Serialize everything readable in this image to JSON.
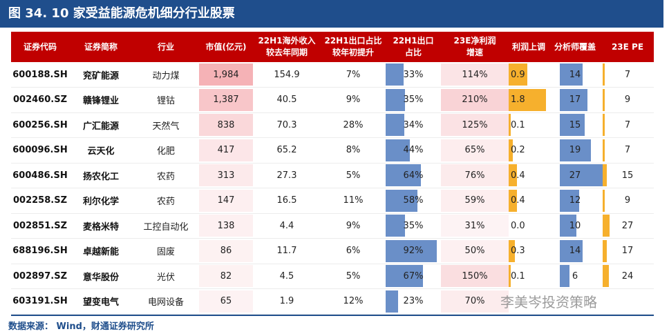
{
  "title": "图 34. 10 家受益能源危机细分行业股票",
  "headers": [
    "证券代码",
    "证券简称",
    "行业",
    "市值(亿元)",
    "22H1海外收入\n较去年同期",
    "22H1出口占比\n较年初提升",
    "22H1出口\n占比",
    "23E净利润\n增速",
    "利润上调",
    "分析师覆盖",
    "23E PE"
  ],
  "source": "数据来源： Wind，财通证券研究所",
  "watermark": "李美岑投资策略",
  "colors": {
    "title_bg": "#1f4e8c",
    "header_bg": "#c00000",
    "export_bar": "#6a8fc8",
    "profit_bar": "#f6b02d",
    "analyst_bar": "#6a8fc8",
    "pe_bar": "#f6b02d",
    "mv_heat": "#f4a6ab",
    "growth_heat": "#f9d3d6"
  },
  "chart_data": {
    "type": "table",
    "columns": [
      "证券代码",
      "证券简称",
      "行业",
      "市值(亿元)",
      "22H1海外收入较去年同期",
      "22H1出口占比较年初提升",
      "22H1出口占比",
      "23E净利润增速",
      "利润上调",
      "分析师覆盖",
      "23E PE"
    ],
    "rows": [
      {
        "code": "600188.SH",
        "name": "兖矿能源",
        "industry": "动力煤",
        "mv": "1,984",
        "mv_num": 1984,
        "overseas": "154.9",
        "export_up": "7%",
        "export": "33%",
        "export_num": 33,
        "growth": "114%",
        "growth_num": 114,
        "profit_adj": "0.9",
        "profit_num": 0.9,
        "analysts": "14",
        "analysts_num": 14,
        "pe": "7",
        "pe_num": 7
      },
      {
        "code": "002460.SZ",
        "name": "赣锋锂业",
        "industry": "锂钴",
        "mv": "1,387",
        "mv_num": 1387,
        "overseas": "40.5",
        "export_up": "9%",
        "export": "35%",
        "export_num": 35,
        "growth": "210%",
        "growth_num": 210,
        "profit_adj": "1.8",
        "profit_num": 1.8,
        "analysts": "17",
        "analysts_num": 17,
        "pe": "9",
        "pe_num": 9
      },
      {
        "code": "600256.SH",
        "name": "广汇能源",
        "industry": "天然气",
        "mv": "838",
        "mv_num": 838,
        "overseas": "70.3",
        "export_up": "28%",
        "export": "34%",
        "export_num": 34,
        "growth": "125%",
        "growth_num": 125,
        "profit_adj": "0.1",
        "profit_num": 0.1,
        "analysts": "15",
        "analysts_num": 15,
        "pe": "7",
        "pe_num": 7
      },
      {
        "code": "600096.SH",
        "name": "云天化",
        "industry": "化肥",
        "mv": "417",
        "mv_num": 417,
        "overseas": "65.2",
        "export_up": "8%",
        "export": "44%",
        "export_num": 44,
        "growth": "65%",
        "growth_num": 65,
        "profit_adj": "0.2",
        "profit_num": 0.2,
        "analysts": "19",
        "analysts_num": 19,
        "pe": "7",
        "pe_num": 7
      },
      {
        "code": "600486.SH",
        "name": "扬农化工",
        "industry": "农药",
        "mv": "313",
        "mv_num": 313,
        "overseas": "27.3",
        "export_up": "5%",
        "export": "64%",
        "export_num": 64,
        "growth": "76%",
        "growth_num": 76,
        "profit_adj": "0.4",
        "profit_num": 0.4,
        "analysts": "27",
        "analysts_num": 27,
        "pe": "15",
        "pe_num": 15
      },
      {
        "code": "002258.SZ",
        "name": "利尔化学",
        "industry": "农药",
        "mv": "147",
        "mv_num": 147,
        "overseas": "16.5",
        "export_up": "11%",
        "export": "58%",
        "export_num": 58,
        "growth": "59%",
        "growth_num": 59,
        "profit_adj": "0.4",
        "profit_num": 0.4,
        "analysts": "12",
        "analysts_num": 12,
        "pe": "9",
        "pe_num": 9
      },
      {
        "code": "002851.SZ",
        "name": "麦格米特",
        "industry": "工控自动化",
        "mv": "138",
        "mv_num": 138,
        "overseas": "4.4",
        "export_up": "9%",
        "export": "35%",
        "export_num": 35,
        "growth": "31%",
        "growth_num": 31,
        "profit_adj": "0.0",
        "profit_num": 0.0,
        "analysts": "10",
        "analysts_num": 10,
        "pe": "27",
        "pe_num": 27
      },
      {
        "code": "688196.SH",
        "name": "卓越新能",
        "industry": "固废",
        "mv": "86",
        "mv_num": 86,
        "overseas": "11.7",
        "export_up": "6%",
        "export": "92%",
        "export_num": 92,
        "growth": "50%",
        "growth_num": 50,
        "profit_adj": "0.3",
        "profit_num": 0.3,
        "analysts": "14",
        "analysts_num": 14,
        "pe": "17",
        "pe_num": 17
      },
      {
        "code": "002897.SZ",
        "name": "意华股份",
        "industry": "光伏",
        "mv": "82",
        "mv_num": 82,
        "overseas": "4.5",
        "export_up": "5%",
        "export": "67%",
        "export_num": 67,
        "growth": "150%",
        "growth_num": 150,
        "profit_adj": "0.1",
        "profit_num": 0.1,
        "analysts": "6",
        "analysts_num": 6,
        "pe": "24",
        "pe_num": 24
      },
      {
        "code": "603191.SH",
        "name": "望变电气",
        "industry": "电网设备",
        "mv": "65",
        "mv_num": 65,
        "overseas": "1.9",
        "export_up": "12%",
        "export": "23%",
        "export_num": 23,
        "growth": "70%",
        "growth_num": 70,
        "profit_adj": "",
        "profit_num": 0,
        "analysts": "",
        "analysts_num": 0,
        "pe": "",
        "pe_num": 0
      }
    ]
  }
}
